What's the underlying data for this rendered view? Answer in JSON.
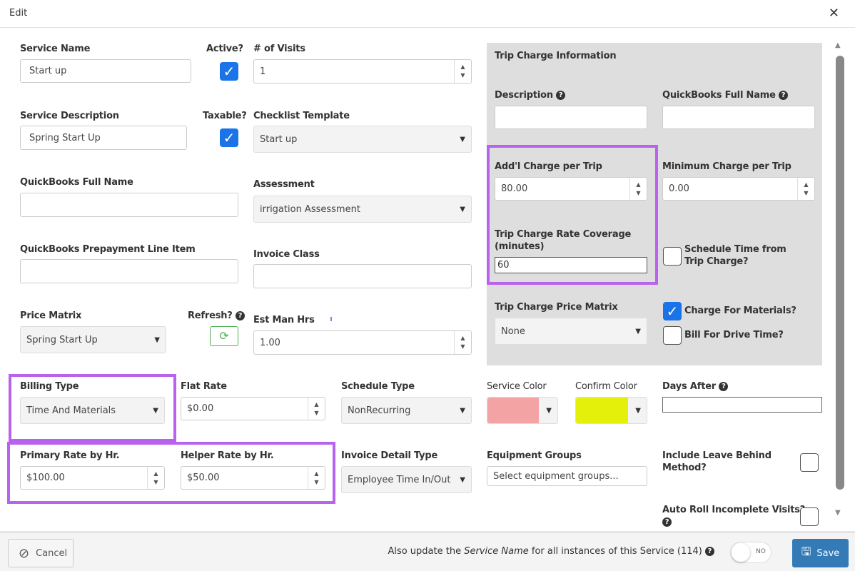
{
  "dialog": {
    "title": "Edit",
    "close_icon": "close-icon"
  },
  "form": {
    "service_name": {
      "label": "Service Name",
      "value": "Start up"
    },
    "active": {
      "label": "Active?",
      "checked": true
    },
    "visits": {
      "label": "# of Visits",
      "value": "1"
    },
    "service_description": {
      "label": "Service Description",
      "value": "Spring Start Up"
    },
    "taxable": {
      "label": "Taxable?",
      "checked": true
    },
    "checklist_template": {
      "label": "Checklist Template",
      "value": "Start up"
    },
    "qb_full_name": {
      "label": "QuickBooks Full Name",
      "value": ""
    },
    "assessment": {
      "label": "Assessment",
      "value": "irrigation Assessment"
    },
    "qb_prepayment": {
      "label": "QuickBooks Prepayment Line Item",
      "value": ""
    },
    "invoice_class": {
      "label": "Invoice Class",
      "value": ""
    },
    "price_matrix": {
      "label": "Price Matrix",
      "value": "Spring Start Up"
    },
    "refresh": {
      "label": "Refresh?"
    },
    "est_man_hrs": {
      "label": "Est Man Hrs",
      "value": "1.00"
    },
    "billing_type": {
      "label": "Billing Type",
      "value": "Time And Materials"
    },
    "flat_rate": {
      "label": "Flat Rate",
      "value": "$0.00"
    },
    "schedule_type": {
      "label": "Schedule Type",
      "value": "NonRecurring"
    },
    "service_color": {
      "label": "Service Color",
      "color": "#f4a3a5"
    },
    "confirm_color": {
      "label": "Confirm Color",
      "color": "#e4ef0a"
    },
    "days_after": {
      "label": "Days After",
      "value": ""
    },
    "primary_rate": {
      "label": "Primary Rate by Hr.",
      "value": "$100.00"
    },
    "helper_rate": {
      "label": "Helper Rate by Hr.",
      "value": "$50.00"
    },
    "invoice_detail_type": {
      "label": "Invoice Detail Type",
      "value": "Employee Time In/Out"
    },
    "equipment_groups": {
      "label": "Equipment Groups",
      "placeholder": "Select equipment groups..."
    },
    "leave_behind": {
      "label": "Include Leave Behind Method?",
      "checked": false
    },
    "auto_roll": {
      "label": "Auto Roll Incomplete Visits?",
      "checked": false
    }
  },
  "trip": {
    "title": "Trip Charge Information",
    "description": {
      "label": "Description",
      "value": ""
    },
    "qb_full_name": {
      "label": "QuickBooks Full Name",
      "value": ""
    },
    "addl_charge": {
      "label": "Add'l Charge per Trip",
      "value": "80.00"
    },
    "min_charge": {
      "label": "Minimum Charge per Trip",
      "value": "0.00"
    },
    "rate_coverage": {
      "label": "Trip Charge Rate Coverage (minutes)",
      "value": "60"
    },
    "schedule_time": {
      "label": "Schedule Time from Trip Charge?",
      "checked": false
    },
    "price_matrix": {
      "label": "Trip Charge Price Matrix",
      "value": "None"
    },
    "charge_materials": {
      "label": "Charge For Materials?",
      "checked": true
    },
    "bill_drive": {
      "label": "Bill For Drive Time?",
      "checked": false
    }
  },
  "footer": {
    "cancel": "Cancel",
    "note_pre": "Also update the",
    "note_em": "Service Name",
    "note_post": "for all instances of this Service (114)",
    "toggle": "NO",
    "save": "Save"
  },
  "colors": {
    "highlight": "#b862ee",
    "accent": "#1a73e8",
    "save": "#337ab7"
  }
}
